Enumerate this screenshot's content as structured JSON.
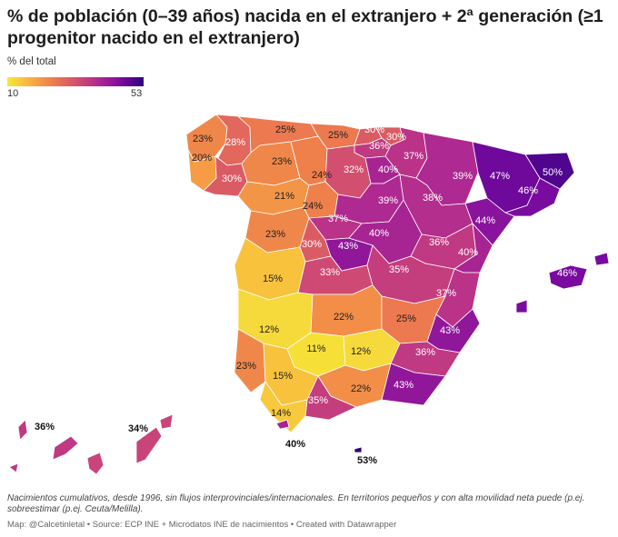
{
  "title": "% de población (0–39 años) nacida en el extranjero + 2ª generación (≥1 progenitor nacido en el extranjero)",
  "legend": {
    "label": "% del total",
    "min": "10",
    "max": "53"
  },
  "provinces": [
    {
      "name": "A Coruña",
      "value": 23,
      "label": "23%"
    },
    {
      "name": "Lugo",
      "value": 28,
      "label": "28%"
    },
    {
      "name": "Asturias",
      "value": 25,
      "label": "25%"
    },
    {
      "name": "Cantabria",
      "value": 25,
      "label": "25%"
    },
    {
      "name": "Bizkaia",
      "value": 30,
      "label": "30%"
    },
    {
      "name": "Gipuzkoa",
      "value": 30,
      "label": "30%"
    },
    {
      "name": "Álava",
      "value": 36,
      "label": "36%"
    },
    {
      "name": "Navarra",
      "value": 37,
      "label": "37%"
    },
    {
      "name": "Pontevedra",
      "value": 20,
      "label": "20%"
    },
    {
      "name": "Ourense",
      "value": 30,
      "label": "30%"
    },
    {
      "name": "León",
      "value": 23,
      "label": "23%"
    },
    {
      "name": "Palencia",
      "value": 24,
      "label": "24%"
    },
    {
      "name": "Burgos",
      "value": 32,
      "label": "32%"
    },
    {
      "name": "La Rioja",
      "value": 40,
      "label": "40%"
    },
    {
      "name": "Huesca",
      "value": 39,
      "label": "39%"
    },
    {
      "name": "Girona",
      "value": 50,
      "label": "50%"
    },
    {
      "name": "Lleida",
      "value": 47,
      "label": "47%"
    },
    {
      "name": "Barcelona",
      "value": 46,
      "label": "46%"
    },
    {
      "name": "Zamora",
      "value": 21,
      "label": "21%"
    },
    {
      "name": "Valladolid",
      "value": 24,
      "label": "24%"
    },
    {
      "name": "Soria",
      "value": 39,
      "label": "39%"
    },
    {
      "name": "Zaragoza",
      "value": 38,
      "label": "38%"
    },
    {
      "name": "Tarragona",
      "value": 44,
      "label": "44%"
    },
    {
      "name": "Segovia",
      "value": 37,
      "label": "37%"
    },
    {
      "name": "Salamanca",
      "value": 23,
      "label": "23%"
    },
    {
      "name": "Ávila",
      "value": 30,
      "label": "30%"
    },
    {
      "name": "Madrid",
      "value": 43,
      "label": "43%"
    },
    {
      "name": "Guadalajara",
      "value": 40,
      "label": "40%"
    },
    {
      "name": "Teruel",
      "value": 36,
      "label": "36%"
    },
    {
      "name": "Castellón",
      "value": 40,
      "label": "40%"
    },
    {
      "name": "Cáceres",
      "value": 15,
      "label": "15%"
    },
    {
      "name": "Toledo",
      "value": 33,
      "label": "33%"
    },
    {
      "name": "Cuenca",
      "value": 35,
      "label": "35%"
    },
    {
      "name": "Valencia",
      "value": 37,
      "label": "37%"
    },
    {
      "name": "Illes Balears",
      "value": 46,
      "label": "46%"
    },
    {
      "name": "Badajoz",
      "value": 12,
      "label": "12%"
    },
    {
      "name": "Ciudad Real",
      "value": 22,
      "label": "22%"
    },
    {
      "name": "Albacete",
      "value": 25,
      "label": "25%"
    },
    {
      "name": "Alicante",
      "value": 43,
      "label": "43%"
    },
    {
      "name": "Córdoba",
      "value": 11,
      "label": "11%"
    },
    {
      "name": "Jaén",
      "value": 12,
      "label": "12%"
    },
    {
      "name": "Murcia",
      "value": 36,
      "label": "36%"
    },
    {
      "name": "Huelva",
      "value": 23,
      "label": "23%"
    },
    {
      "name": "Sevilla",
      "value": 15,
      "label": "15%"
    },
    {
      "name": "Granada",
      "value": 22,
      "label": "22%"
    },
    {
      "name": "Almería",
      "value": 43,
      "label": "43%"
    },
    {
      "name": "Málaga",
      "value": 35,
      "label": "35%"
    },
    {
      "name": "Cádiz",
      "value": 14,
      "label": "14%"
    },
    {
      "name": "Santa Cruz de Tenerife",
      "value": 36,
      "label": "36%"
    },
    {
      "name": "Las Palmas",
      "value": 34,
      "label": "34%"
    },
    {
      "name": "Ceuta",
      "value": 40,
      "label": "40%"
    },
    {
      "name": "Melilla",
      "value": 53,
      "label": "53%"
    }
  ],
  "note": "Nacimientos cumulativos, desde 1996, sin flujos interprovinciales/internacionales. En territorios pequeños y con alta movilidad neta puede   (p.ej. sobreestimar (p.ej. Ceuta/Melilla).",
  "source": "Map: @Calcetinletal • Source: ECP INE + Microdatos INE de nacimientos • Created with Datawrapper",
  "colors": {
    "scale": [
      "#f5e837",
      "#f9b140",
      "#ee7d4c",
      "#d6526c",
      "#b12a90",
      "#7b0ba0",
      "#2f0080"
    ],
    "border": "#ffffff"
  }
}
